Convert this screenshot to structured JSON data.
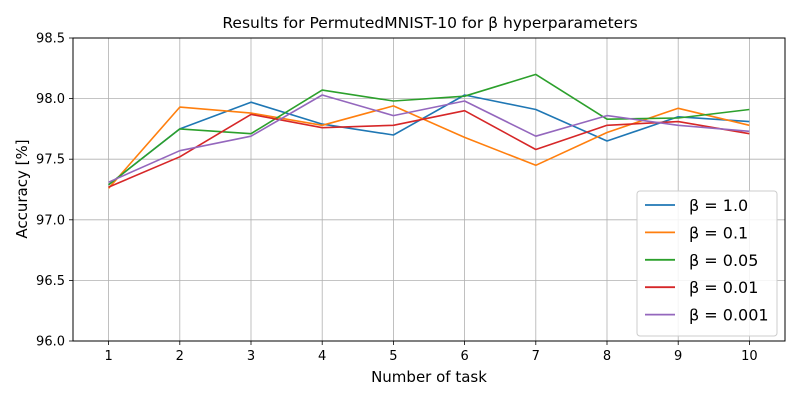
{
  "chart_data": {
    "type": "line",
    "title": "Results for PermutedMNIST-10 for β hyperparameters",
    "xlabel": "Number of task",
    "ylabel": "Accuracy [%]",
    "x": [
      1,
      2,
      3,
      4,
      5,
      6,
      7,
      8,
      9,
      10
    ],
    "xlim": [
      0.5,
      10.5
    ],
    "ylim": [
      96.0,
      98.5
    ],
    "yticks": [
      96.0,
      96.5,
      97.0,
      97.5,
      98.0,
      98.5
    ],
    "ytick_labels": [
      "96.0",
      "96.5",
      "97.0",
      "97.5",
      "98.0",
      "98.5"
    ],
    "xtick_labels": [
      "1",
      "2",
      "3",
      "4",
      "5",
      "6",
      "7",
      "8",
      "9",
      "10"
    ],
    "grid": true,
    "legend_position": "bottom-right",
    "series": [
      {
        "name": "β = 1.0",
        "color": "#1f77b4",
        "values": [
          97.29,
          97.75,
          97.97,
          97.79,
          97.7,
          98.03,
          97.91,
          97.65,
          97.85,
          97.81
        ]
      },
      {
        "name": "β = 0.1",
        "color": "#ff7f0e",
        "values": [
          97.26,
          97.93,
          97.88,
          97.78,
          97.94,
          97.68,
          97.45,
          97.72,
          97.92,
          97.78
        ]
      },
      {
        "name": "β = 0.05",
        "color": "#2ca02c",
        "values": [
          97.29,
          97.75,
          97.71,
          98.07,
          97.98,
          98.02,
          98.2,
          97.83,
          97.84,
          97.91
        ]
      },
      {
        "name": "β = 0.01",
        "color": "#d62728",
        "values": [
          97.27,
          97.52,
          97.87,
          97.76,
          97.78,
          97.9,
          97.58,
          97.78,
          97.81,
          97.71
        ]
      },
      {
        "name": "β = 0.001",
        "color": "#9467bd",
        "values": [
          97.31,
          97.57,
          97.69,
          98.03,
          97.86,
          97.98,
          97.69,
          97.86,
          97.78,
          97.73
        ]
      }
    ]
  }
}
